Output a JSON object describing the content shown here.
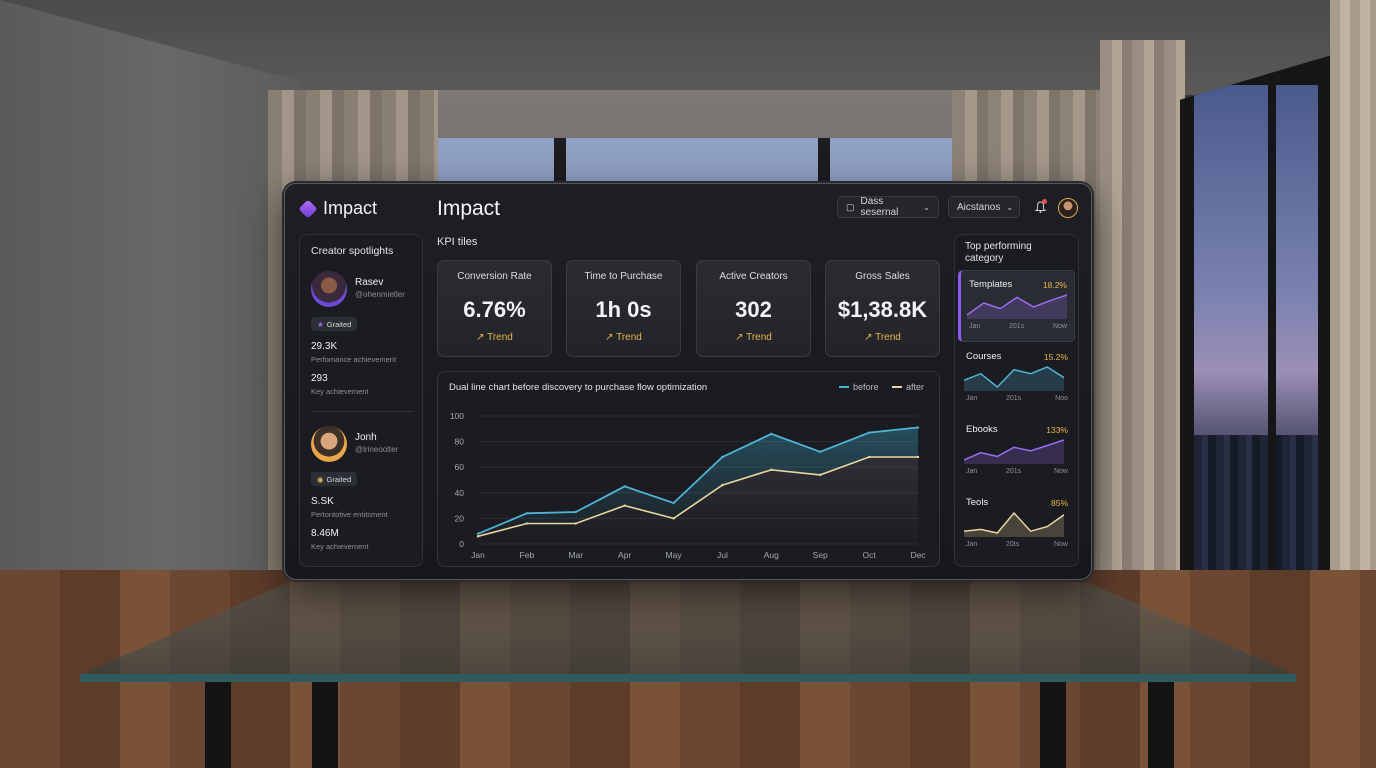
{
  "app": {
    "logo_text": "Impact",
    "page_title": "Impact"
  },
  "header": {
    "dropdown1_label": "Dass sesernal",
    "dropdown2_label": "Aicstanos",
    "icons": [
      "calendar-icon",
      "chevron-down-icon",
      "bell-icon",
      "avatar"
    ]
  },
  "sidebar": {
    "title": "Creator spotlights",
    "creators": [
      {
        "name": "Rasev",
        "handle": "@ohenmietler",
        "badge": "Graited",
        "stat1_value": "29.3K",
        "stat1_label": "Perfomance achievement",
        "stat2_value": "293",
        "stat2_label": "Key achievement"
      },
      {
        "name": "Jonh",
        "handle": "@lrineoolter",
        "badge": "Graited",
        "stat1_value": "S.SK",
        "stat1_label": "Pertontotive entitsment",
        "stat2_value": "8.46M",
        "stat2_label": "Key achievement"
      }
    ]
  },
  "kpis": {
    "title": "KPI tiles",
    "tiles": [
      {
        "label": "Conversion Rate",
        "value": "6.76%",
        "trend": "Trend"
      },
      {
        "label": "Time to Purchase",
        "value": "1h 0s",
        "trend": "Trend"
      },
      {
        "label": "Active Creators",
        "value": "302",
        "trend": "Trend"
      },
      {
        "label": "Gross Sales",
        "value": "$1,38.8K",
        "trend": "Trend"
      }
    ]
  },
  "colors": {
    "accent": "#8c5cf0",
    "before": "#4fb3d6",
    "after": "#e8d6a0",
    "trend": "#e8b64d"
  },
  "chart_data": {
    "type": "line",
    "title": "Dual line chart before discovery to purchase flow optimization",
    "categories": [
      "Jan",
      "Feb",
      "Mar",
      "Apr",
      "May",
      "Jul",
      "Aug",
      "Sep",
      "Oct",
      "Dec"
    ],
    "series": [
      {
        "name": "before",
        "values": [
          8,
          24,
          25,
          45,
          32,
          68,
          86,
          72,
          87,
          91
        ]
      },
      {
        "name": "after",
        "values": [
          6,
          16,
          16,
          30,
          20,
          46,
          58,
          54,
          68,
          68
        ]
      }
    ],
    "yticks": [
      0,
      20,
      40,
      60,
      80,
      100
    ],
    "ylim": [
      0,
      100
    ],
    "legend_position": "top-right",
    "grid": true
  },
  "right_panel": {
    "title": "Top performing category",
    "categories": [
      {
        "name": "Templates",
        "pct": "18.2%",
        "axis": [
          "Jan",
          "201s",
          "Now"
        ],
        "color": "#9a6cf0",
        "spark": [
          30,
          45,
          38,
          52,
          40,
          48,
          55
        ]
      },
      {
        "name": "Courses",
        "pct": "15.2%",
        "axis": [
          "Jan",
          "201s",
          "Noo"
        ],
        "color": "#4fb3d6",
        "spark": [
          40,
          45,
          35,
          48,
          45,
          50,
          42
        ]
      },
      {
        "name": "Ebooks",
        "pct": "133%",
        "axis": [
          "Jan",
          "201s",
          "Now"
        ],
        "color": "#9a6cf0",
        "spark": [
          30,
          38,
          34,
          44,
          40,
          46,
          52
        ]
      },
      {
        "name": "Teols",
        "pct": "85%",
        "axis": [
          "Jan",
          "20ts",
          "Now"
        ],
        "color": "#e8d6a0",
        "spark": [
          30,
          32,
          28,
          50,
          30,
          35,
          48
        ]
      }
    ]
  }
}
